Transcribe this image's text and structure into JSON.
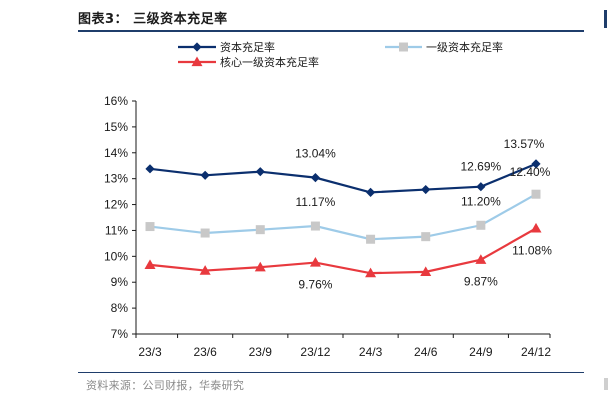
{
  "figure": {
    "title": "图表3：  三级资本充足率",
    "source": "资料来源：公司财报，华泰研究"
  },
  "chart_data": {
    "type": "line",
    "title": "",
    "xlabel": "",
    "ylabel": "",
    "categories": [
      "23/3",
      "23/6",
      "23/9",
      "23/12",
      "24/3",
      "24/6",
      "24/9",
      "24/12"
    ],
    "ylim": [
      7,
      16
    ],
    "yticks": [
      "7%",
      "8%",
      "9%",
      "10%",
      "11%",
      "12%",
      "13%",
      "14%",
      "15%",
      "16%"
    ],
    "grid": false,
    "legend_position": "top",
    "series": [
      {
        "name": "资本充足率",
        "color": "#0b2f6e",
        "marker": "diamond",
        "values": [
          13.38,
          13.13,
          13.27,
          13.04,
          12.47,
          12.58,
          12.69,
          13.57
        ]
      },
      {
        "name": "一级资本充足率",
        "color": "#9ecbe8",
        "marker": "square",
        "values": [
          11.15,
          10.9,
          11.03,
          11.17,
          10.66,
          10.76,
          11.2,
          12.4
        ]
      },
      {
        "name": "核心一级资本充足率",
        "color": "#e8393e",
        "marker": "triangle",
        "values": [
          9.67,
          9.45,
          9.58,
          9.76,
          9.35,
          9.4,
          9.87,
          11.08
        ]
      }
    ],
    "annotations": [
      {
        "series": 0,
        "index": 3,
        "text": "13.04%"
      },
      {
        "series": 0,
        "index": 6,
        "text": "12.69%"
      },
      {
        "series": 0,
        "index": 7,
        "text": "13.57%"
      },
      {
        "series": 1,
        "index": 3,
        "text": "11.17%"
      },
      {
        "series": 1,
        "index": 6,
        "text": "11.20%"
      },
      {
        "series": 1,
        "index": 7,
        "text": "12.40%"
      },
      {
        "series": 2,
        "index": 3,
        "text": "9.76%"
      },
      {
        "series": 2,
        "index": 6,
        "text": "9.87%"
      },
      {
        "series": 2,
        "index": 7,
        "text": "11.08%"
      }
    ]
  }
}
